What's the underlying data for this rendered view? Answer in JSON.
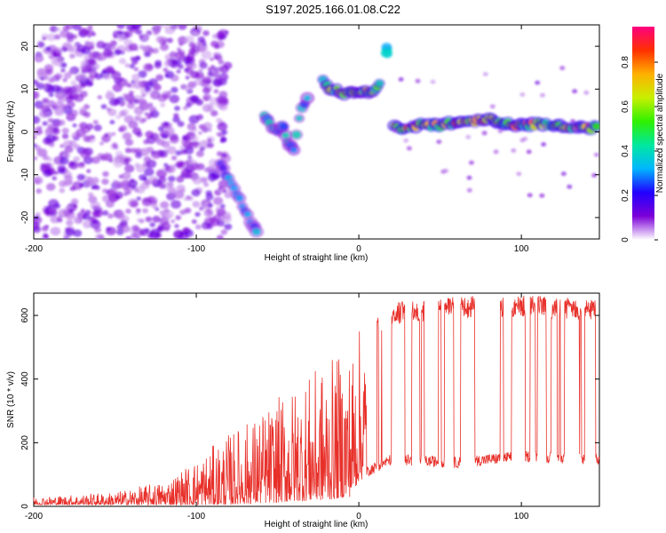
{
  "title": "S197.2025.166.01.08.C22",
  "chart_data": [
    {
      "type": "heatmap",
      "xlabel": "Height of straight line (km)",
      "ylabel": "Frequency (Hz)",
      "xlim": [
        -200,
        148
      ],
      "ylim": [
        -25,
        25
      ],
      "x_ticks": [
        -200,
        -100,
        0,
        100
      ],
      "y_ticks": [
        -20,
        -10,
        0,
        10,
        20
      ],
      "colorbar": {
        "label": "Normalized spectral amplitude",
        "range": [
          0,
          0.96
        ],
        "ticks": [
          0,
          0.2,
          0.4,
          0.6,
          0.8
        ],
        "colors": [
          "#ffffff",
          "#7c00d8",
          "#2200ff",
          "#00b6ff",
          "#00e8a0",
          "#30f000",
          "#c8f000",
          "#ffb000",
          "#ff3000",
          "#ff0080"
        ]
      },
      "features": [
        {
          "name": "noise",
          "x_range": [
            -200,
            -80
          ],
          "y_range": [
            -25,
            25
          ],
          "amplitude": 0.12
        },
        {
          "name": "descending-track",
          "points": [
            [
              -85,
              -8
            ],
            [
              -80,
              -11
            ],
            [
              -75,
              -15
            ],
            [
              -70,
              -18
            ],
            [
              -65,
              -22
            ],
            [
              -62,
              -24
            ]
          ],
          "amplitude": 0.3
        },
        {
          "name": "mid-cluster",
          "points": [
            [
              -58,
              4
            ],
            [
              -55,
              2
            ],
            [
              -50,
              0
            ],
            [
              -47,
              2
            ],
            [
              -44,
              -2
            ],
            [
              -40,
              -4
            ],
            [
              -35,
              6
            ],
            [
              -30,
              8
            ]
          ],
          "amplitude": 0.35
        },
        {
          "name": "band-10hz",
          "points": [
            [
              -22,
              12
            ],
            [
              -18,
              10
            ],
            [
              -12,
              9.5
            ],
            [
              -6,
              9
            ],
            [
              0,
              9.5
            ],
            [
              6,
              9.5
            ],
            [
              10,
              10
            ],
            [
              14,
              12
            ]
          ],
          "amplitude": 0.6
        },
        {
          "name": "top-spot",
          "points": [
            [
              17,
              19
            ]
          ],
          "amplitude": 0.4
        },
        {
          "name": "carrier-line",
          "points": [
            [
              22,
              1
            ],
            [
              40,
              1.5
            ],
            [
              60,
              2
            ],
            [
              70,
              2.5
            ],
            [
              82,
              3
            ],
            [
              90,
              2
            ],
            [
              100,
              1.5
            ],
            [
              110,
              2
            ],
            [
              120,
              1.5
            ],
            [
              135,
              1
            ],
            [
              148,
              1
            ]
          ],
          "amplitude": 0.7
        }
      ]
    },
    {
      "type": "line",
      "xlabel": "Height of straight line (km)",
      "ylabel": "SNR (10 * v/v)",
      "xlim": [
        -200,
        148
      ],
      "ylim": [
        0,
        670
      ],
      "x_ticks": [
        -200,
        -100,
        0,
        100
      ],
      "y_ticks": [
        0,
        200,
        400,
        600
      ],
      "series": [
        {
          "color": "#e8302a",
          "envelope": [
            {
              "x": -200,
              "low": 5,
              "high": 30
            },
            {
              "x": -150,
              "low": 5,
              "high": 45
            },
            {
              "x": -120,
              "low": 5,
              "high": 80
            },
            {
              "x": -100,
              "low": 5,
              "high": 150
            },
            {
              "x": -80,
              "low": 5,
              "high": 230
            },
            {
              "x": -60,
              "low": 10,
              "high": 300
            },
            {
              "x": -40,
              "low": 15,
              "high": 380
            },
            {
              "x": -20,
              "low": 20,
              "high": 450
            },
            {
              "x": -5,
              "low": 30,
              "high": 500
            },
            {
              "x": 0,
              "low": 80,
              "high": 560
            },
            {
              "x": 20,
              "low": 130,
              "high": 640
            },
            {
              "x": 60,
              "low": 120,
              "high": 660
            },
            {
              "x": 100,
              "low": 140,
              "high": 665
            },
            {
              "x": 148,
              "low": 130,
              "high": 650
            }
          ]
        }
      ]
    }
  ]
}
